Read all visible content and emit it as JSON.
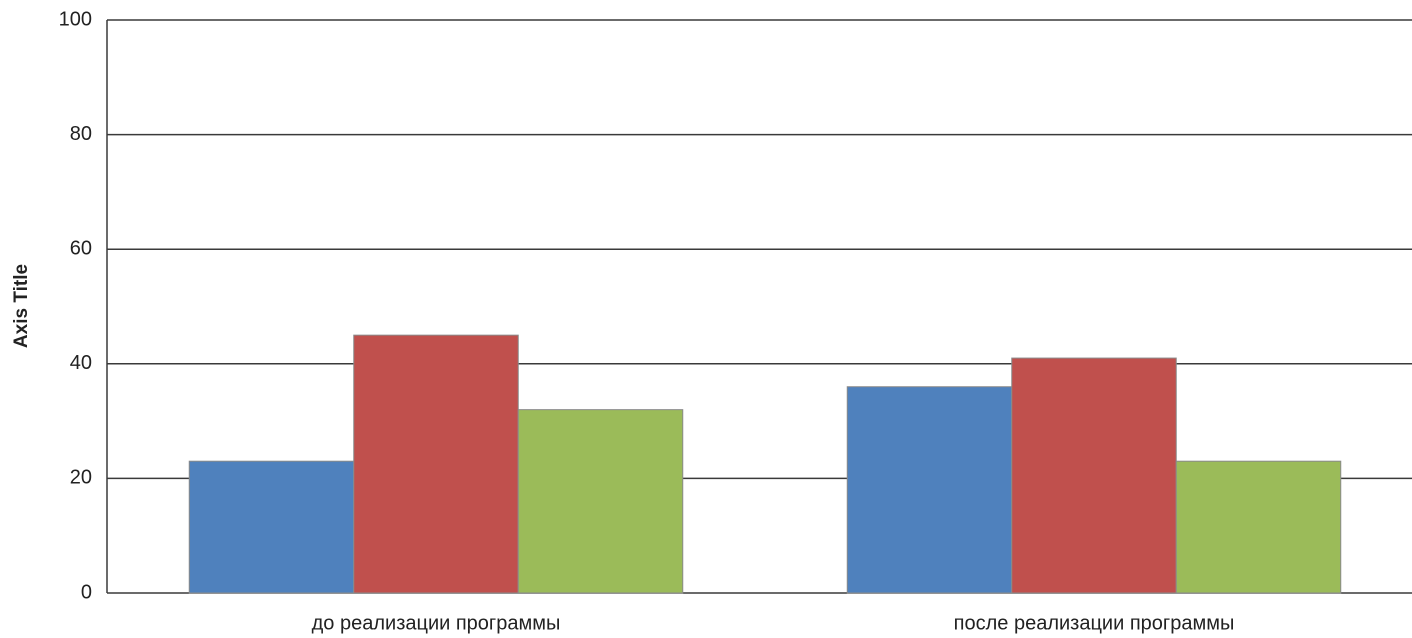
{
  "chart_data": {
    "type": "bar",
    "categories": [
      "до реализации программы",
      "после реализации программы"
    ],
    "series": [
      {
        "color": "#4f81bd",
        "values": [
          23,
          36
        ]
      },
      {
        "color": "#c0504d",
        "values": [
          45,
          41
        ]
      },
      {
        "color": "#9bbb59",
        "values": [
          32,
          23
        ]
      }
    ],
    "y_axis_title": "Axis Title",
    "ylim": [
      0,
      100
    ],
    "yticks": [
      0,
      20,
      40,
      60,
      80,
      100
    ],
    "grid": true
  }
}
